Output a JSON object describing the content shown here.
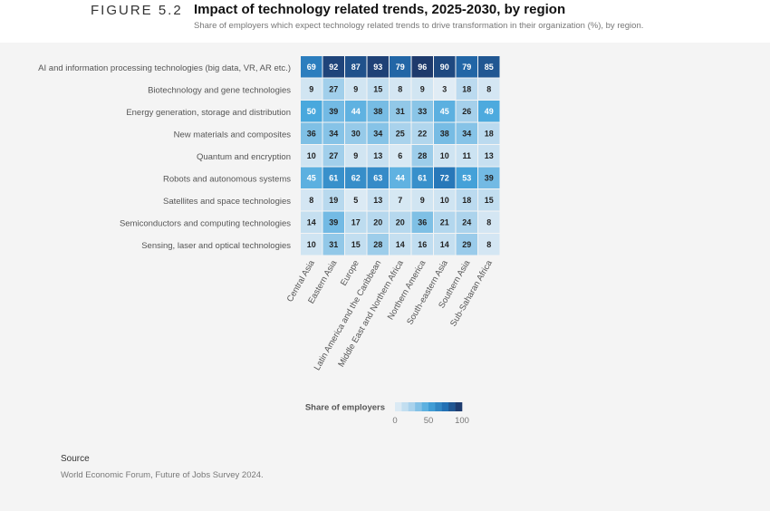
{
  "figure_label": "FIGURE 5.2",
  "title": "Impact of technology related trends, 2025-2030, by region",
  "subtitle": "Share of employers which expect  technology related trends to drive transformation in their organization (%), by region.",
  "source": {
    "title": "Source",
    "text": "World Economic Forum, Future of Jobs Survey 2024."
  },
  "colors": {
    "scale": [
      "#e8f0f6",
      "#a9d2ec",
      "#49a8dd",
      "#2371b4",
      "#1d2f5e"
    ]
  },
  "chart_data": {
    "type": "heatmap",
    "rows": [
      "AI and information processing technologies (big data, VR, AR etc.)",
      "Biotechnology and gene technologies",
      "Energy generation, storage and distribution",
      "New materials and composites",
      "Quantum and encryption",
      "Robots and autonomous systems",
      "Satellites and space technologies",
      "Semiconductors and computing technologies",
      "Sensing, laser and optical technologies"
    ],
    "columns": [
      "Central Asia",
      "Eastern Asia",
      "Europe",
      "Latin America and the Caribbean",
      "Middle East and Northern Africa",
      "Northern America",
      "South-eastern Asia",
      "Southern Asia",
      "Sub-Saharan Africa"
    ],
    "values": [
      [
        69,
        92,
        87,
        93,
        79,
        96,
        90,
        79,
        85
      ],
      [
        9,
        27,
        9,
        15,
        8,
        9,
        3,
        18,
        8
      ],
      [
        50,
        39,
        44,
        38,
        31,
        33,
        45,
        26,
        49
      ],
      [
        36,
        34,
        30,
        34,
        25,
        22,
        38,
        34,
        18
      ],
      [
        10,
        27,
        9,
        13,
        6,
        28,
        10,
        11,
        13
      ],
      [
        45,
        61,
        62,
        63,
        44,
        61,
        72,
        53,
        39
      ],
      [
        8,
        19,
        5,
        13,
        7,
        9,
        10,
        18,
        15
      ],
      [
        14,
        39,
        17,
        20,
        20,
        36,
        21,
        24,
        8
      ],
      [
        10,
        31,
        15,
        28,
        14,
        16,
        14,
        29,
        8
      ]
    ],
    "range": [
      0,
      100
    ],
    "legend": {
      "title": "Share of employers",
      "ticks": [
        0,
        50,
        100
      ],
      "position": "bottom-center"
    }
  }
}
